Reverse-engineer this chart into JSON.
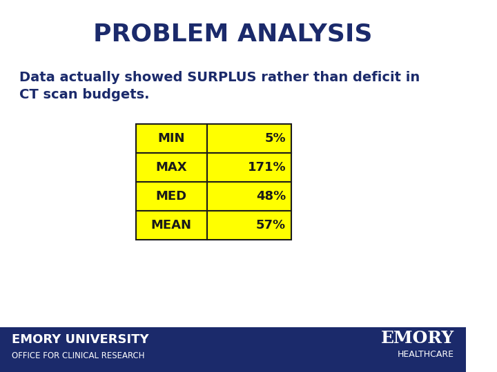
{
  "title": "PROBLEM ANALYSIS",
  "subtitle": "Data actually showed SURPLUS rather than deficit in\nCT scan budgets.",
  "table_rows": [
    [
      "MIN",
      "5%"
    ],
    [
      "MAX",
      "171%"
    ],
    [
      "MED",
      "48%"
    ],
    [
      "MEAN",
      "57%"
    ]
  ],
  "table_bg": "#FFFF00",
  "table_border": "#1a1a1a",
  "title_color": "#1B2A6B",
  "subtitle_color": "#1B2A6B",
  "footer_bg": "#1B2A6B",
  "footer_text1": "EMORY UNIVERSITY",
  "footer_text2": "OFFICE FOR CLINICAL RESEARCH",
  "footer_right1": "EMORY",
  "footer_right2": "HEALTHCARE",
  "bg_color": "#FFFFFF"
}
